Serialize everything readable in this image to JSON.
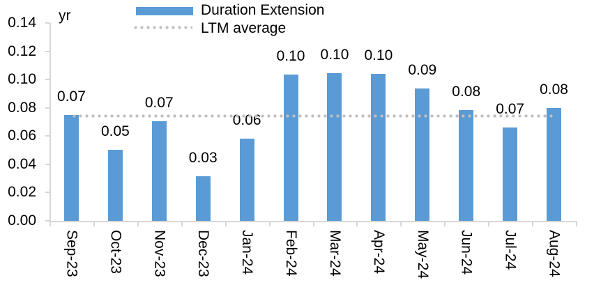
{
  "chart_data": {
    "type": "bar",
    "title": "",
    "unit_label": "yr",
    "series_name": "Duration Extension",
    "categories": [
      "Sep-23",
      "Oct-23",
      "Nov-23",
      "Dec-23",
      "Jan-24",
      "Feb-24",
      "Mar-24",
      "Apr-24",
      "May-24",
      "Jun-24",
      "Jul-24",
      "Aug-24"
    ],
    "values": [
      0.07,
      0.05,
      0.07,
      0.03,
      0.06,
      0.1,
      0.1,
      0.1,
      0.09,
      0.08,
      0.07,
      0.08
    ],
    "value_labels": [
      "0.07",
      "0.05",
      "0.07",
      "0.03",
      "0.06",
      "0.10",
      "0.10",
      "0.10",
      "0.09",
      "0.08",
      "0.07",
      "0.08"
    ],
    "bar_heights_estimate": [
      0.0748,
      0.0505,
      0.0705,
      0.0315,
      0.058,
      0.1035,
      0.1045,
      0.1038,
      0.0935,
      0.0785,
      0.066,
      0.08
    ],
    "ltm_average": {
      "label": "LTM average",
      "value": 0.074
    },
    "ylim": [
      0,
      0.14
    ],
    "y_tick_step": 0.02,
    "y_tick_labels": [
      "0.00",
      "0.02",
      "0.04",
      "0.06",
      "0.08",
      "0.10",
      "0.12",
      "0.14"
    ],
    "xlabel": "",
    "ylabel": "yr",
    "grid": false,
    "legend_position": "top-center",
    "colors": {
      "bar": "#5b9bd5",
      "ltm_line": "#bfbfbf",
      "axis": "#d6d6d6",
      "text": "#000000"
    }
  }
}
